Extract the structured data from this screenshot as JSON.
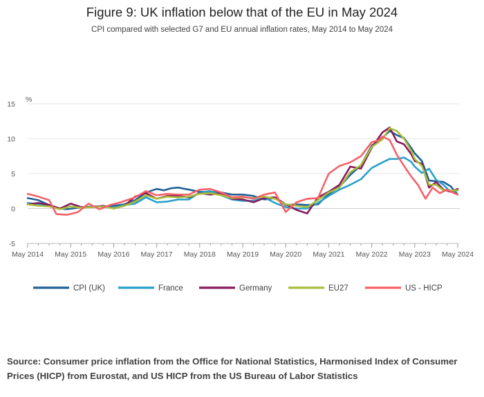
{
  "title": "Figure 9: UK inflation below that of the EU in May 2024",
  "subtitle": "CPI compared with selected G7 and EU annual inflation rates, May 2014 to May 2024",
  "source": "Source: Consumer price inflation from the Office for National Statistics, Harmonised Index of Consumer Prices (HICP) from Eurostat, and US HICP from the US Bureau of Labor Statistics",
  "chart_data": {
    "type": "line",
    "title": "Figure 9: UK inflation below that of the EU in May 2024",
    "ylabel": "%",
    "xlabel": "",
    "ylim": [
      -5,
      15
    ],
    "yticks": [
      "15",
      "10",
      "5",
      "0",
      "-5"
    ],
    "xtick_labels": [
      "May 2014",
      "May 2015",
      "May 2016",
      "May 2017",
      "May 2018",
      "May 2019",
      "May 2020",
      "May 2021",
      "May 2022",
      "May 2023",
      "May 2024"
    ],
    "xtick_month_offsets": [
      0,
      12,
      24,
      36,
      48,
      60,
      72,
      84,
      96,
      108,
      120
    ],
    "x_start": "May 2014",
    "x_end": "May 2024",
    "grid": true,
    "legend_position": "bottom",
    "series": [
      {
        "name": "CPI (UK)",
        "color": "#206095",
        "points": [
          [
            0,
            1.5
          ],
          [
            3,
            1.2
          ],
          [
            6,
            0.5
          ],
          [
            9,
            0.0
          ],
          [
            11,
            -0.1
          ],
          [
            14,
            0.1
          ],
          [
            18,
            0.3
          ],
          [
            21,
            0.3
          ],
          [
            24,
            0.4
          ],
          [
            27,
            0.6
          ],
          [
            30,
            1.2
          ],
          [
            33,
            2.3
          ],
          [
            36,
            2.8
          ],
          [
            38,
            2.6
          ],
          [
            40,
            2.9
          ],
          [
            42,
            3.0
          ],
          [
            45,
            2.7
          ],
          [
            48,
            2.4
          ],
          [
            51,
            2.4
          ],
          [
            54,
            2.3
          ],
          [
            57,
            2.0
          ],
          [
            60,
            2.0
          ],
          [
            63,
            1.8
          ],
          [
            66,
            1.3
          ],
          [
            69,
            1.5
          ],
          [
            72,
            0.5
          ],
          [
            75,
            0.6
          ],
          [
            78,
            0.5
          ],
          [
            81,
            0.6
          ],
          [
            84,
            2.1
          ],
          [
            87,
            3.1
          ],
          [
            90,
            4.8
          ],
          [
            93,
            6.2
          ],
          [
            96,
            9.0
          ],
          [
            99,
            10.1
          ],
          [
            101,
            11.1
          ],
          [
            103,
            10.5
          ],
          [
            105,
            10.1
          ],
          [
            107,
            8.7
          ],
          [
            108,
            7.9
          ],
          [
            110,
            6.8
          ],
          [
            112,
            4.0
          ],
          [
            114,
            3.9
          ],
          [
            116,
            3.8
          ],
          [
            118,
            3.2
          ],
          [
            120,
            2.0
          ]
        ]
      },
      {
        "name": "France",
        "color": "#27a0cc",
        "points": [
          [
            0,
            0.8
          ],
          [
            3,
            0.6
          ],
          [
            6,
            0.4
          ],
          [
            9,
            0.0
          ],
          [
            12,
            0.3
          ],
          [
            15,
            0.1
          ],
          [
            18,
            0.3
          ],
          [
            21,
            0.3
          ],
          [
            24,
            0.1
          ],
          [
            27,
            0.5
          ],
          [
            30,
            0.7
          ],
          [
            33,
            1.6
          ],
          [
            36,
            0.9
          ],
          [
            39,
            1.0
          ],
          [
            42,
            1.3
          ],
          [
            45,
            1.3
          ],
          [
            48,
            2.3
          ],
          [
            51,
            2.5
          ],
          [
            54,
            1.9
          ],
          [
            57,
            1.3
          ],
          [
            60,
            1.1
          ],
          [
            63,
            1.1
          ],
          [
            66,
            1.6
          ],
          [
            69,
            0.8
          ],
          [
            72,
            0.2
          ],
          [
            75,
            0.0
          ],
          [
            78,
            0.0
          ],
          [
            81,
            0.8
          ],
          [
            84,
            1.8
          ],
          [
            87,
            2.7
          ],
          [
            90,
            3.4
          ],
          [
            93,
            4.2
          ],
          [
            96,
            5.8
          ],
          [
            99,
            6.6
          ],
          [
            101,
            7.1
          ],
          [
            103,
            7.1
          ],
          [
            105,
            7.3
          ],
          [
            107,
            6.7
          ],
          [
            108,
            6.0
          ],
          [
            110,
            5.1
          ],
          [
            112,
            5.7
          ],
          [
            114,
            4.1
          ],
          [
            116,
            3.4
          ],
          [
            118,
            2.4
          ],
          [
            120,
            2.6
          ]
        ]
      },
      {
        "name": "Germany",
        "color": "#871a5b",
        "points": [
          [
            0,
            0.6
          ],
          [
            3,
            0.8
          ],
          [
            6,
            0.5
          ],
          [
            9,
            0.0
          ],
          [
            12,
            0.7
          ],
          [
            15,
            0.2
          ],
          [
            18,
            0.2
          ],
          [
            21,
            0.4
          ],
          [
            24,
            0.0
          ],
          [
            27,
            0.4
          ],
          [
            30,
            1.7
          ],
          [
            33,
            2.2
          ],
          [
            36,
            1.4
          ],
          [
            39,
            1.8
          ],
          [
            42,
            1.8
          ],
          [
            45,
            1.6
          ],
          [
            48,
            2.2
          ],
          [
            51,
            2.0
          ],
          [
            54,
            2.2
          ],
          [
            57,
            1.4
          ],
          [
            60,
            1.3
          ],
          [
            63,
            0.9
          ],
          [
            66,
            1.5
          ],
          [
            69,
            1.6
          ],
          [
            72,
            0.6
          ],
          [
            75,
            -0.2
          ],
          [
            78,
            -0.7
          ],
          [
            81,
            1.6
          ],
          [
            84,
            2.4
          ],
          [
            87,
            3.4
          ],
          [
            90,
            6.0
          ],
          [
            93,
            5.7
          ],
          [
            96,
            8.7
          ],
          [
            99,
            10.9
          ],
          [
            101,
            11.6
          ],
          [
            103,
            9.6
          ],
          [
            105,
            9.2
          ],
          [
            107,
            7.8
          ],
          [
            108,
            6.8
          ],
          [
            110,
            6.4
          ],
          [
            112,
            3.0
          ],
          [
            114,
            3.8
          ],
          [
            116,
            2.7
          ],
          [
            118,
            2.4
          ],
          [
            120,
            2.8
          ]
        ]
      },
      {
        "name": "EU27",
        "color": "#a8bd3a",
        "points": [
          [
            0,
            0.6
          ],
          [
            3,
            0.4
          ],
          [
            6,
            0.3
          ],
          [
            9,
            -0.1
          ],
          [
            12,
            0.3
          ],
          [
            15,
            0.1
          ],
          [
            18,
            0.2
          ],
          [
            21,
            0.3
          ],
          [
            24,
            0.0
          ],
          [
            27,
            0.4
          ],
          [
            30,
            1.0
          ],
          [
            33,
            1.9
          ],
          [
            36,
            1.4
          ],
          [
            39,
            1.7
          ],
          [
            42,
            1.6
          ],
          [
            45,
            1.7
          ],
          [
            48,
            2.1
          ],
          [
            51,
            2.2
          ],
          [
            54,
            1.9
          ],
          [
            57,
            1.5
          ],
          [
            60,
            1.6
          ],
          [
            63,
            1.5
          ],
          [
            66,
            1.7
          ],
          [
            69,
            1.4
          ],
          [
            72,
            0.6
          ],
          [
            75,
            0.4
          ],
          [
            78,
            0.2
          ],
          [
            81,
            1.2
          ],
          [
            84,
            2.3
          ],
          [
            87,
            3.0
          ],
          [
            90,
            5.2
          ],
          [
            93,
            6.2
          ],
          [
            96,
            8.8
          ],
          [
            99,
            9.9
          ],
          [
            101,
            11.5
          ],
          [
            103,
            11.1
          ],
          [
            105,
            10.0
          ],
          [
            107,
            8.3
          ],
          [
            108,
            7.1
          ],
          [
            110,
            6.1
          ],
          [
            112,
            3.4
          ],
          [
            114,
            3.4
          ],
          [
            116,
            2.6
          ],
          [
            118,
            2.6
          ],
          [
            120,
            2.6
          ]
        ]
      },
      {
        "name": "US - HICP",
        "color": "#f66068",
        "points": [
          [
            0,
            2.1
          ],
          [
            3,
            1.7
          ],
          [
            6,
            1.2
          ],
          [
            8,
            -0.8
          ],
          [
            11,
            -0.9
          ],
          [
            14,
            -0.5
          ],
          [
            17,
            0.7
          ],
          [
            20,
            -0.1
          ],
          [
            23,
            0.5
          ],
          [
            26,
            0.9
          ],
          [
            30,
            1.6
          ],
          [
            33,
            2.5
          ],
          [
            36,
            1.9
          ],
          [
            39,
            2.1
          ],
          [
            42,
            2.0
          ],
          [
            45,
            2.0
          ],
          [
            48,
            2.7
          ],
          [
            51,
            2.8
          ],
          [
            54,
            2.3
          ],
          [
            57,
            1.6
          ],
          [
            60,
            1.7
          ],
          [
            63,
            1.4
          ],
          [
            66,
            2.0
          ],
          [
            69,
            2.3
          ],
          [
            72,
            -0.5
          ],
          [
            75,
            0.9
          ],
          [
            78,
            1.4
          ],
          [
            81,
            1.5
          ],
          [
            84,
            5.0
          ],
          [
            87,
            6.1
          ],
          [
            90,
            6.6
          ],
          [
            93,
            7.5
          ],
          [
            96,
            9.5
          ],
          [
            98,
            9.8
          ],
          [
            99,
            10.3
          ],
          [
            101,
            9.8
          ],
          [
            103,
            7.7
          ],
          [
            105,
            6.1
          ],
          [
            107,
            4.6
          ],
          [
            109,
            3.3
          ],
          [
            111,
            1.4
          ],
          [
            113,
            3.0
          ],
          [
            115,
            2.2
          ],
          [
            117,
            2.7
          ],
          [
            119,
            2.2
          ],
          [
            120,
            2.0
          ]
        ]
      }
    ]
  }
}
